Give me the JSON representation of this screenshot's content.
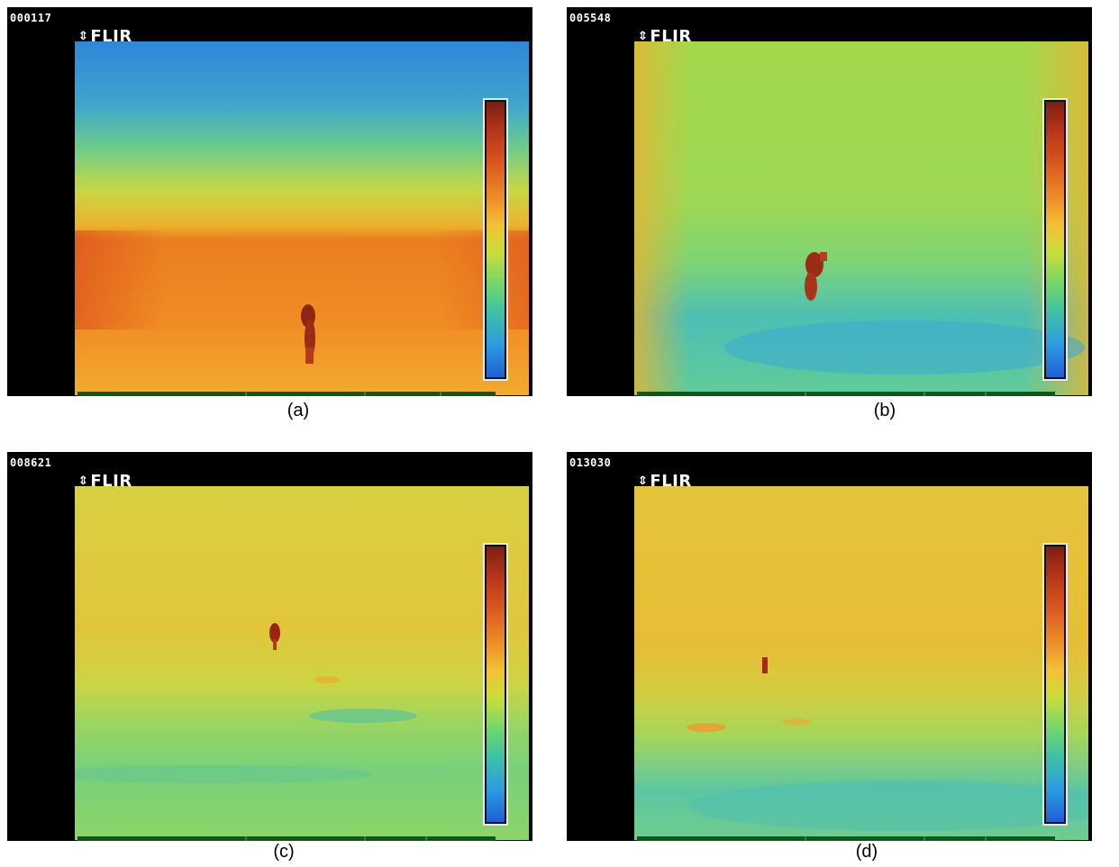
{
  "panels": [
    {
      "frame_id": "000117",
      "logo": "FLIR",
      "caption": "(a)"
    },
    {
      "frame_id": "005548",
      "logo": "FLIR",
      "caption": "(b)"
    },
    {
      "frame_id": "008621",
      "logo": "FLIR",
      "caption": "(c)"
    },
    {
      "frame_id": "013030",
      "logo": "FLIR",
      "caption": "(d)"
    }
  ],
  "colors": {
    "palette_hot": "#7a1e12",
    "palette_cold": "#1e5fd6",
    "background": "#000000"
  }
}
